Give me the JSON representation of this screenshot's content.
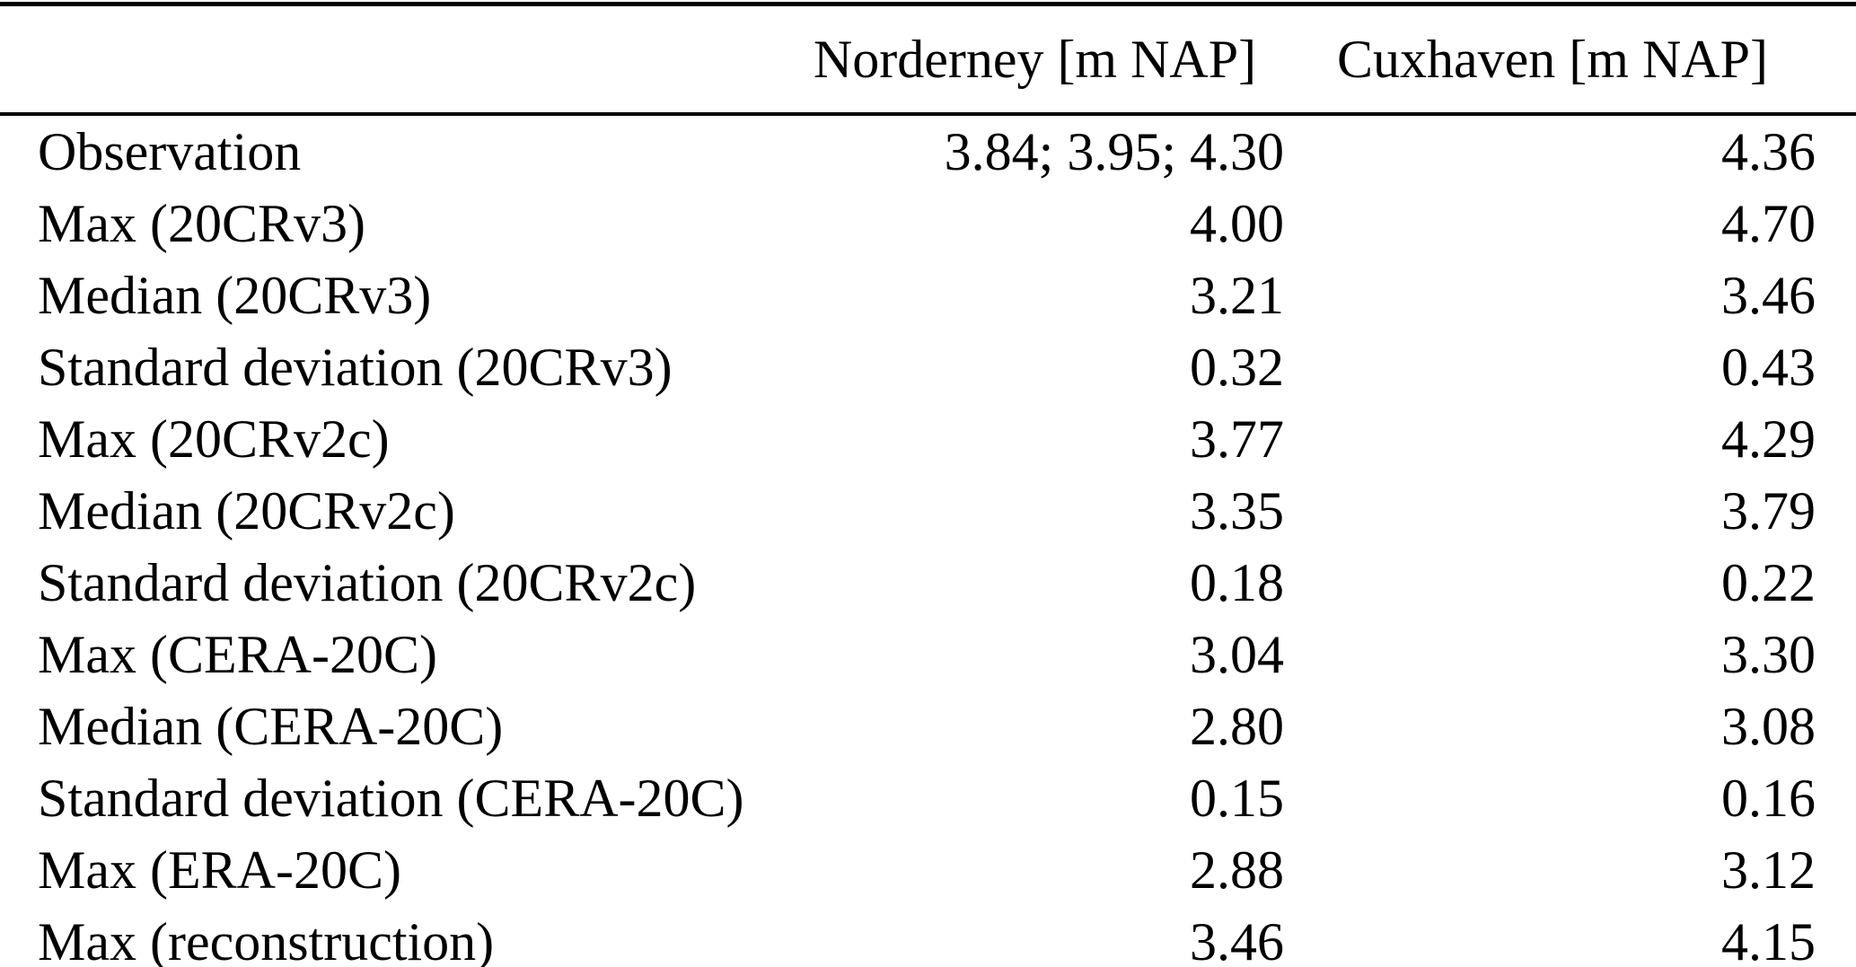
{
  "table": {
    "column_headers": {
      "label": "",
      "norderney": "Norderney [m NAP]",
      "cuxhaven": "Cuxhaven [m NAP]"
    },
    "rows": [
      {
        "label": "Observation",
        "norderney": "3.84; 3.95; 4.30",
        "cuxhaven": "4.36"
      },
      {
        "label": "Max (20CRv3)",
        "norderney": "4.00",
        "cuxhaven": "4.70"
      },
      {
        "label": "Median (20CRv3)",
        "norderney": "3.21",
        "cuxhaven": "3.46"
      },
      {
        "label": "Standard deviation (20CRv3)",
        "norderney": "0.32",
        "cuxhaven": "0.43"
      },
      {
        "label": "Max (20CRv2c)",
        "norderney": "3.77",
        "cuxhaven": "4.29"
      },
      {
        "label": "Median (20CRv2c)",
        "norderney": "3.35",
        "cuxhaven": "3.79"
      },
      {
        "label": "Standard deviation (20CRv2c)",
        "norderney": "0.18",
        "cuxhaven": "0.22"
      },
      {
        "label": "Max (CERA-20C)",
        "norderney": "3.04",
        "cuxhaven": "3.30"
      },
      {
        "label": "Median (CERA-20C)",
        "norderney": "2.80",
        "cuxhaven": "3.08"
      },
      {
        "label": "Standard deviation (CERA-20C)",
        "norderney": "0.15",
        "cuxhaven": "0.16"
      },
      {
        "label": "Max (ERA-20C)",
        "norderney": "2.88",
        "cuxhaven": "3.12"
      },
      {
        "label": "Max (reconstruction)",
        "norderney": "3.46",
        "cuxhaven": "4.15"
      }
    ]
  },
  "colors": {
    "text": "#000000",
    "background": "#ffffff",
    "rule": "#000000"
  },
  "chart_data": {
    "type": "table",
    "title": "",
    "columns": [
      "",
      "Norderney [m NAP]",
      "Cuxhaven [m NAP]"
    ],
    "rows": [
      [
        "Observation",
        "3.84; 3.95; 4.30",
        "4.36"
      ],
      [
        "Max (20CRv3)",
        "4.00",
        "4.70"
      ],
      [
        "Median (20CRv3)",
        "3.21",
        "3.46"
      ],
      [
        "Standard deviation (20CRv3)",
        "0.32",
        "0.43"
      ],
      [
        "Max (20CRv2c)",
        "3.77",
        "4.29"
      ],
      [
        "Median (20CRv2c)",
        "3.35",
        "3.79"
      ],
      [
        "Standard deviation (20CRv2c)",
        "0.18",
        "0.22"
      ],
      [
        "Max (CERA-20C)",
        "3.04",
        "3.30"
      ],
      [
        "Median (CERA-20C)",
        "2.80",
        "3.08"
      ],
      [
        "Standard deviation (CERA-20C)",
        "0.15",
        "0.16"
      ],
      [
        "Max (ERA-20C)",
        "2.88",
        "3.12"
      ],
      [
        "Max (reconstruction)",
        "3.46",
        "4.15"
      ]
    ]
  }
}
